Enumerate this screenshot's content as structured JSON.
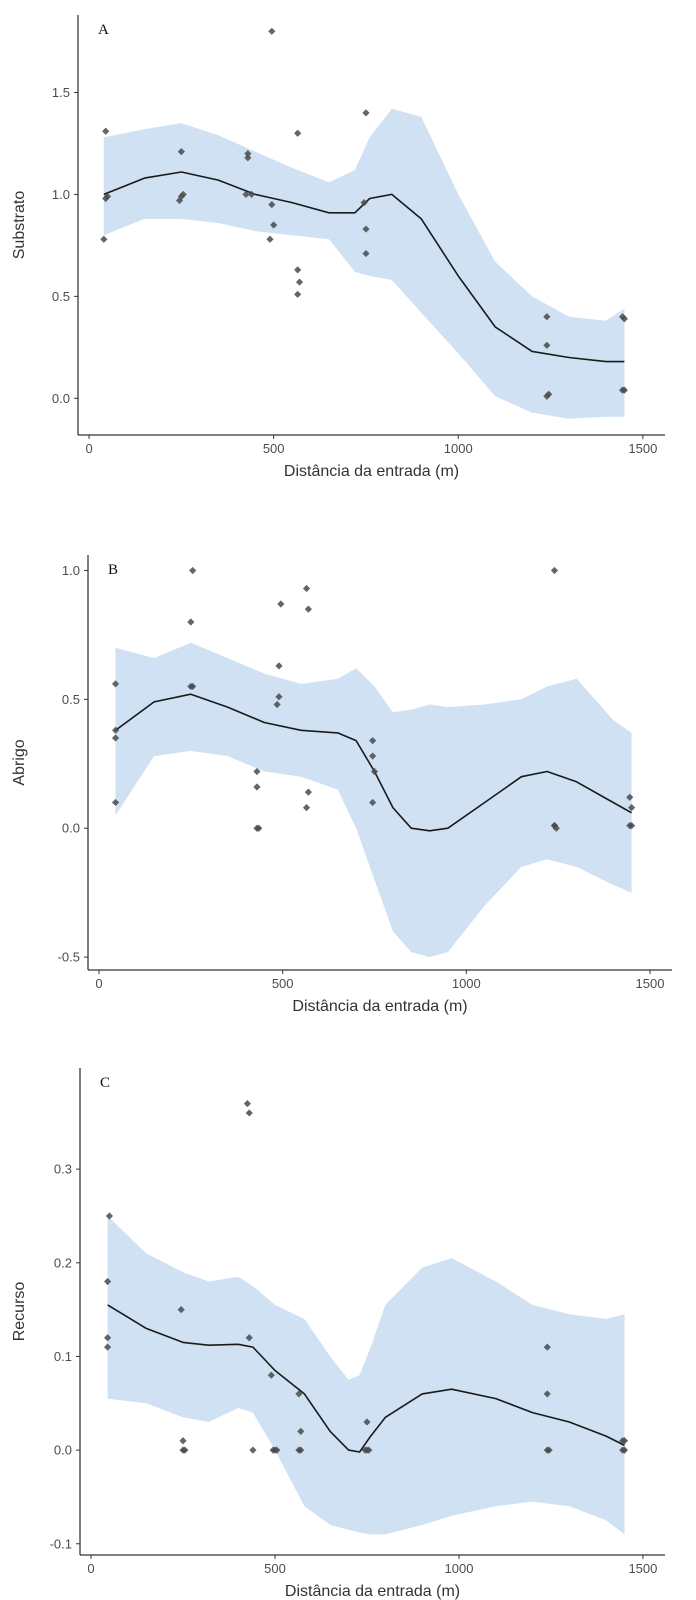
{
  "chart_data": [
    {
      "type": "scatter",
      "panel_label": "A",
      "xlabel": "Distância da entrada (m)",
      "ylabel": "Substrato",
      "xlim": [
        -30,
        1560
      ],
      "ylim": [
        -0.18,
        1.88
      ],
      "x_ticks": [
        0,
        500,
        1000,
        1500
      ],
      "y_ticks": [
        0.0,
        0.5,
        1.0,
        1.5
      ],
      "grid": false,
      "point_color": "#4a4a4a",
      "line_color": "#1a1a1a",
      "band_color": "#cfe1f3",
      "points": [
        {
          "x": 45,
          "y": 1.31
        },
        {
          "x": 45,
          "y": 0.98
        },
        {
          "x": 50,
          "y": 0.99
        },
        {
          "x": 40,
          "y": 0.78
        },
        {
          "x": 250,
          "y": 1.21
        },
        {
          "x": 245,
          "y": 0.97
        },
        {
          "x": 255,
          "y": 1.0
        },
        {
          "x": 250,
          "y": 0.99
        },
        {
          "x": 430,
          "y": 1.2
        },
        {
          "x": 430,
          "y": 1.18
        },
        {
          "x": 425,
          "y": 1.0
        },
        {
          "x": 440,
          "y": 1.0
        },
        {
          "x": 495,
          "y": 1.8
        },
        {
          "x": 495,
          "y": 0.95
        },
        {
          "x": 500,
          "y": 0.85
        },
        {
          "x": 490,
          "y": 0.78
        },
        {
          "x": 565,
          "y": 1.3
        },
        {
          "x": 565,
          "y": 0.63
        },
        {
          "x": 570,
          "y": 0.57
        },
        {
          "x": 565,
          "y": 0.51
        },
        {
          "x": 750,
          "y": 1.4
        },
        {
          "x": 745,
          "y": 0.96
        },
        {
          "x": 750,
          "y": 0.83
        },
        {
          "x": 750,
          "y": 0.71
        },
        {
          "x": 1240,
          "y": 0.4
        },
        {
          "x": 1240,
          "y": 0.26
        },
        {
          "x": 1245,
          "y": 0.02
        },
        {
          "x": 1240,
          "y": 0.01
        },
        {
          "x": 1445,
          "y": 0.4
        },
        {
          "x": 1450,
          "y": 0.39
        },
        {
          "x": 1450,
          "y": 0.04
        },
        {
          "x": 1445,
          "y": 0.04
        }
      ],
      "smooth": {
        "x": [
          40,
          150,
          250,
          350,
          450,
          550,
          650,
          720,
          760,
          820,
          900,
          1000,
          1100,
          1200,
          1300,
          1400,
          1450
        ],
        "y": [
          1.0,
          1.08,
          1.11,
          1.07,
          1.0,
          0.96,
          0.91,
          0.91,
          0.98,
          1.0,
          0.88,
          0.6,
          0.35,
          0.23,
          0.2,
          0.18,
          0.18
        ],
        "lower": [
          0.8,
          0.88,
          0.88,
          0.86,
          0.82,
          0.8,
          0.78,
          0.62,
          0.6,
          0.58,
          0.42,
          0.22,
          0.01,
          -0.07,
          -0.1,
          -0.09,
          -0.09
        ],
        "upper": [
          1.28,
          1.32,
          1.35,
          1.29,
          1.21,
          1.13,
          1.06,
          1.12,
          1.28,
          1.42,
          1.38,
          1.0,
          0.67,
          0.5,
          0.4,
          0.38,
          0.44
        ]
      }
    },
    {
      "type": "scatter",
      "panel_label": "B",
      "xlabel": "Distância da entrada (m)",
      "ylabel": "Abrigo",
      "xlim": [
        -30,
        1560
      ],
      "ylim": [
        -0.55,
        1.06
      ],
      "x_ticks": [
        0,
        500,
        1000,
        1500
      ],
      "y_ticks": [
        -0.5,
        0.0,
        0.5,
        1.0
      ],
      "grid": false,
      "point_color": "#4a4a4a",
      "line_color": "#1a1a1a",
      "band_color": "#cfe1f3",
      "points": [
        {
          "x": 45,
          "y": 0.56
        },
        {
          "x": 45,
          "y": 0.38
        },
        {
          "x": 45,
          "y": 0.35
        },
        {
          "x": 45,
          "y": 0.1
        },
        {
          "x": 255,
          "y": 1.0
        },
        {
          "x": 250,
          "y": 0.8
        },
        {
          "x": 250,
          "y": 0.55
        },
        {
          "x": 255,
          "y": 0.55
        },
        {
          "x": 430,
          "y": 0.22
        },
        {
          "x": 430,
          "y": 0.16
        },
        {
          "x": 430,
          "y": 0.0
        },
        {
          "x": 435,
          "y": 0.0
        },
        {
          "x": 495,
          "y": 0.87
        },
        {
          "x": 490,
          "y": 0.63
        },
        {
          "x": 490,
          "y": 0.51
        },
        {
          "x": 485,
          "y": 0.48
        },
        {
          "x": 565,
          "y": 0.93
        },
        {
          "x": 570,
          "y": 0.85
        },
        {
          "x": 570,
          "y": 0.14
        },
        {
          "x": 565,
          "y": 0.08
        },
        {
          "x": 745,
          "y": 0.34
        },
        {
          "x": 745,
          "y": 0.28
        },
        {
          "x": 750,
          "y": 0.22
        },
        {
          "x": 745,
          "y": 0.1
        },
        {
          "x": 1240,
          "y": 1.0
        },
        {
          "x": 1240,
          "y": 0.01
        },
        {
          "x": 1245,
          "y": 0.0
        },
        {
          "x": 1240,
          "y": 0.01
        },
        {
          "x": 1445,
          "y": 0.12
        },
        {
          "x": 1450,
          "y": 0.08
        },
        {
          "x": 1450,
          "y": 0.01
        },
        {
          "x": 1445,
          "y": 0.01
        }
      ],
      "smooth": {
        "x": [
          45,
          150,
          250,
          350,
          450,
          550,
          650,
          700,
          750,
          800,
          850,
          900,
          950,
          1050,
          1150,
          1220,
          1300,
          1400,
          1450
        ],
        "y": [
          0.38,
          0.49,
          0.52,
          0.47,
          0.41,
          0.38,
          0.37,
          0.34,
          0.22,
          0.08,
          0.0,
          -0.01,
          0.0,
          0.1,
          0.2,
          0.22,
          0.18,
          0.1,
          0.06
        ],
        "lower": [
          0.05,
          0.28,
          0.3,
          0.28,
          0.22,
          0.2,
          0.15,
          0.0,
          -0.2,
          -0.4,
          -0.48,
          -0.5,
          -0.48,
          -0.3,
          -0.15,
          -0.12,
          -0.15,
          -0.22,
          -0.25
        ],
        "upper": [
          0.7,
          0.66,
          0.72,
          0.66,
          0.6,
          0.56,
          0.58,
          0.62,
          0.55,
          0.45,
          0.46,
          0.48,
          0.47,
          0.48,
          0.5,
          0.55,
          0.58,
          0.42,
          0.37
        ]
      }
    },
    {
      "type": "scatter",
      "panel_label": "C",
      "xlabel": "Distância da entrada (m)",
      "ylabel": "Recurso",
      "xlim": [
        -30,
        1560
      ],
      "ylim": [
        -0.112,
        0.408
      ],
      "x_ticks": [
        0,
        500,
        1000,
        1500
      ],
      "y_ticks": [
        -0.1,
        0.0,
        0.1,
        0.2,
        0.3
      ],
      "grid": false,
      "point_color": "#4a4a4a",
      "line_color": "#1a1a1a",
      "band_color": "#cfe1f3",
      "points": [
        {
          "x": 50,
          "y": 0.25
        },
        {
          "x": 45,
          "y": 0.18
        },
        {
          "x": 45,
          "y": 0.12
        },
        {
          "x": 45,
          "y": 0.11
        },
        {
          "x": 245,
          "y": 0.15
        },
        {
          "x": 250,
          "y": 0.01
        },
        {
          "x": 250,
          "y": 0.0
        },
        {
          "x": 255,
          "y": 0.0
        },
        {
          "x": 425,
          "y": 0.37
        },
        {
          "x": 430,
          "y": 0.36
        },
        {
          "x": 430,
          "y": 0.12
        },
        {
          "x": 440,
          "y": 0.0
        },
        {
          "x": 490,
          "y": 0.08
        },
        {
          "x": 495,
          "y": 0.0
        },
        {
          "x": 500,
          "y": 0.0
        },
        {
          "x": 505,
          "y": 0.0
        },
        {
          "x": 565,
          "y": 0.06
        },
        {
          "x": 565,
          "y": 0.0
        },
        {
          "x": 570,
          "y": 0.0
        },
        {
          "x": 570,
          "y": 0.02
        },
        {
          "x": 750,
          "y": 0.03
        },
        {
          "x": 745,
          "y": 0.0
        },
        {
          "x": 750,
          "y": 0.0
        },
        {
          "x": 755,
          "y": 0.0
        },
        {
          "x": 1240,
          "y": 0.11
        },
        {
          "x": 1240,
          "y": 0.06
        },
        {
          "x": 1240,
          "y": 0.0
        },
        {
          "x": 1245,
          "y": 0.0
        },
        {
          "x": 1445,
          "y": 0.01
        },
        {
          "x": 1450,
          "y": 0.01
        },
        {
          "x": 1445,
          "y": 0.0
        },
        {
          "x": 1450,
          "y": 0.0
        }
      ],
      "smooth": {
        "x": [
          45,
          150,
          250,
          320,
          400,
          440,
          500,
          580,
          650,
          700,
          730,
          760,
          800,
          900,
          980,
          1100,
          1200,
          1300,
          1400,
          1450
        ],
        "y": [
          0.155,
          0.13,
          0.115,
          0.112,
          0.113,
          0.11,
          0.085,
          0.06,
          0.02,
          0.0,
          -0.002,
          0.015,
          0.035,
          0.06,
          0.065,
          0.055,
          0.04,
          0.03,
          0.015,
          0.005
        ],
        "lower": [
          0.055,
          0.05,
          0.035,
          0.03,
          0.045,
          0.04,
          0.0,
          -0.06,
          -0.08,
          -0.085,
          -0.088,
          -0.09,
          -0.09,
          -0.08,
          -0.07,
          -0.06,
          -0.055,
          -0.06,
          -0.075,
          -0.09
        ],
        "upper": [
          0.25,
          0.21,
          0.19,
          0.18,
          0.185,
          0.175,
          0.155,
          0.14,
          0.1,
          0.075,
          0.08,
          0.11,
          0.155,
          0.195,
          0.205,
          0.18,
          0.155,
          0.145,
          0.14,
          0.145
        ]
      }
    }
  ]
}
